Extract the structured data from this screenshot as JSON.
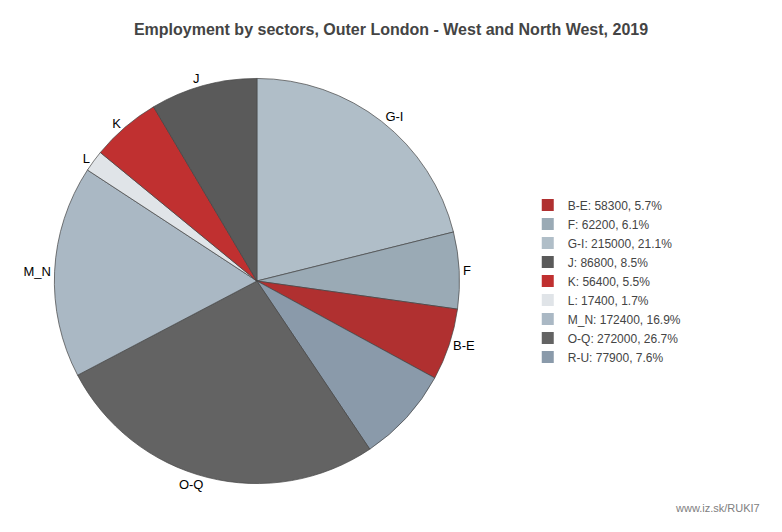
{
  "chart_data": {
    "type": "pie",
    "title": "Employment by sectors, Outer London - West and North West, 2019",
    "categories": [
      "G-I",
      "F",
      "B-E",
      null,
      "O-Q",
      "M_N",
      "L",
      "K",
      "J"
    ],
    "values": [
      215000,
      62200,
      58300,
      77900,
      272000,
      172400,
      17400,
      56400,
      86800
    ],
    "colors": [
      "#b0bec8",
      "#9aaab5",
      "#b03030",
      "#8a9aaa",
      "#636363",
      "#aab8c4",
      "#e0e4e8",
      "#c03030",
      "#5a5a5a"
    ],
    "legend": "right",
    "legend_entries": [
      {
        "name": "B-E: 58300, 5.7%",
        "color": "#b03030"
      },
      {
        "name": "F: 62200, 6.1%",
        "color": "#9aaab5"
      },
      {
        "name": "G-I: 215000, 21.1%",
        "color": "#b0bec8"
      },
      {
        "name": "J: 86800, 8.5%",
        "color": "#5a5a5a"
      },
      {
        "name": "K: 56400, 5.5%",
        "color": "#c03030"
      },
      {
        "name": "L: 17400, 1.7%",
        "color": "#e0e4e8"
      },
      {
        "name": "M_N: 172400, 16.9%",
        "color": "#aab8c4"
      },
      {
        "name": "O-Q: 272000, 26.7%",
        "color": "#636363"
      },
      {
        "name": "R-U: 77900, 7.6%",
        "color": "#8a9aaa"
      }
    ],
    "annotations": [
      "www.iz.sk/RUKI7"
    ]
  }
}
